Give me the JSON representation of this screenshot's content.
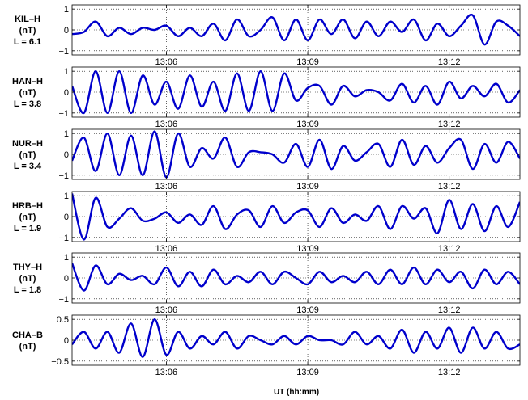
{
  "chart_data": {
    "type": "line",
    "xlabel": "UT (hh:mm)",
    "x_range": [
      "13:04",
      "13:13:30"
    ],
    "x_ticks": [
      "13:06",
      "13:09",
      "13:12"
    ],
    "grid": true,
    "line_color": "#0000cc",
    "panels": [
      {
        "label_lines": [
          "KIL–H",
          "(nT)",
          "L = 6.1"
        ],
        "ylim": [
          -1.2,
          1.2
        ],
        "yticks": [
          -1,
          0,
          1
        ],
        "ytick_labels": [
          "−1",
          "0",
          "1"
        ],
        "x": [
          "13:04:00",
          "13:04:15",
          "13:04:30",
          "13:04:45",
          "13:05:00",
          "13:05:15",
          "13:05:30",
          "13:05:45",
          "13:06:00",
          "13:06:15",
          "13:06:30",
          "13:06:45",
          "13:07:00",
          "13:07:15",
          "13:07:30",
          "13:07:45",
          "13:08:00",
          "13:08:15",
          "13:08:30",
          "13:08:45",
          "13:09:00",
          "13:09:15",
          "13:09:30",
          "13:09:45",
          "13:10:00",
          "13:10:15",
          "13:10:30",
          "13:10:45",
          "13:11:00",
          "13:11:15",
          "13:11:30",
          "13:11:45",
          "13:12:00",
          "13:12:15",
          "13:12:30",
          "13:12:45",
          "13:13:00",
          "13:13:15",
          "13:13:30"
        ],
        "values": [
          -0.2,
          -0.1,
          0.4,
          -0.3,
          0.1,
          -0.2,
          0.1,
          0.0,
          0.2,
          -0.3,
          0.1,
          -0.3,
          0.3,
          -0.5,
          0.5,
          -0.3,
          0.0,
          0.6,
          -0.5,
          0.5,
          -0.5,
          0.5,
          -0.2,
          0.5,
          -0.4,
          0.4,
          -0.3,
          0.4,
          -0.1,
          0.5,
          -0.5,
          0.3,
          -0.3,
          0.2,
          0.7,
          -0.7,
          0.4,
          0.2,
          -0.3
        ]
      },
      {
        "label_lines": [
          "HAN–H",
          "(nT)",
          "L = 3.8"
        ],
        "ylim": [
          -1.2,
          1.2
        ],
        "yticks": [
          -1,
          0,
          1
        ],
        "ytick_labels": [
          "−1",
          "0",
          "1"
        ],
        "x": [
          "13:04:00",
          "13:04:15",
          "13:04:30",
          "13:04:45",
          "13:05:00",
          "13:05:15",
          "13:05:30",
          "13:05:45",
          "13:06:00",
          "13:06:15",
          "13:06:30",
          "13:06:45",
          "13:07:00",
          "13:07:15",
          "13:07:30",
          "13:07:45",
          "13:08:00",
          "13:08:15",
          "13:08:30",
          "13:08:45",
          "13:09:00",
          "13:09:15",
          "13:09:30",
          "13:09:45",
          "13:10:00",
          "13:10:15",
          "13:10:30",
          "13:10:45",
          "13:11:00",
          "13:11:15",
          "13:11:30",
          "13:11:45",
          "13:12:00",
          "13:12:15",
          "13:12:30",
          "13:12:45",
          "13:13:00",
          "13:13:15",
          "13:13:30"
        ],
        "values": [
          0.3,
          -1.0,
          1.0,
          -1.0,
          1.0,
          -1.0,
          0.8,
          -0.6,
          0.5,
          -0.8,
          0.8,
          -0.7,
          0.5,
          -0.9,
          0.9,
          -0.9,
          1.0,
          -0.9,
          0.9,
          -0.4,
          0.2,
          0.3,
          -0.6,
          0.3,
          -0.2,
          0.1,
          0.0,
          -0.4,
          0.4,
          -0.5,
          0.3,
          -0.6,
          0.5,
          -0.3,
          0.3,
          -0.2,
          0.4,
          -0.5,
          0.1
        ]
      },
      {
        "label_lines": [
          "NUR–H",
          "(nT)",
          "L = 3.4"
        ],
        "ylim": [
          -1.2,
          1.2
        ],
        "yticks": [
          -1,
          0,
          1
        ],
        "ytick_labels": [
          "−1",
          "0",
          "1"
        ],
        "x": [
          "13:04:00",
          "13:04:15",
          "13:04:30",
          "13:04:45",
          "13:05:00",
          "13:05:15",
          "13:05:30",
          "13:05:45",
          "13:06:00",
          "13:06:15",
          "13:06:30",
          "13:06:45",
          "13:07:00",
          "13:07:15",
          "13:07:30",
          "13:07:45",
          "13:08:00",
          "13:08:15",
          "13:08:30",
          "13:08:45",
          "13:09:00",
          "13:09:15",
          "13:09:30",
          "13:09:45",
          "13:10:00",
          "13:10:15",
          "13:10:30",
          "13:10:45",
          "13:11:00",
          "13:11:15",
          "13:11:30",
          "13:11:45",
          "13:12:00",
          "13:12:15",
          "13:12:30",
          "13:12:45",
          "13:13:00",
          "13:13:15",
          "13:13:30"
        ],
        "values": [
          -0.3,
          0.8,
          -0.8,
          1.0,
          -1.0,
          0.9,
          -1.0,
          1.1,
          -1.1,
          1.0,
          -0.6,
          0.3,
          -0.2,
          0.8,
          -0.6,
          0.1,
          0.1,
          0.0,
          -0.4,
          0.5,
          -0.6,
          0.7,
          -0.7,
          0.4,
          -0.3,
          0.1,
          0.5,
          -0.6,
          0.7,
          -0.5,
          0.4,
          -0.4,
          0.3,
          0.7,
          -0.7,
          0.5,
          -0.4,
          0.6,
          -0.2
        ]
      },
      {
        "label_lines": [
          "HRB–H",
          "(nT)",
          "L = 1.9"
        ],
        "ylim": [
          -1.2,
          1.2
        ],
        "yticks": [
          -1,
          0,
          1
        ],
        "ytick_labels": [
          "−1",
          "0",
          "1"
        ],
        "x": [
          "13:04:00",
          "13:04:15",
          "13:04:30",
          "13:04:45",
          "13:05:00",
          "13:05:15",
          "13:05:30",
          "13:05:45",
          "13:06:00",
          "13:06:15",
          "13:06:30",
          "13:06:45",
          "13:07:00",
          "13:07:15",
          "13:07:30",
          "13:07:45",
          "13:08:00",
          "13:08:15",
          "13:08:30",
          "13:08:45",
          "13:09:00",
          "13:09:15",
          "13:09:30",
          "13:09:45",
          "13:10:00",
          "13:10:15",
          "13:10:30",
          "13:10:45",
          "13:11:00",
          "13:11:15",
          "13:11:30",
          "13:11:45",
          "13:12:00",
          "13:12:15",
          "13:12:30",
          "13:12:45",
          "13:13:00",
          "13:13:15",
          "13:13:30"
        ],
        "values": [
          1.1,
          -1.1,
          0.9,
          -0.5,
          -0.1,
          0.4,
          -0.2,
          -0.1,
          0.2,
          -0.3,
          0.1,
          -0.4,
          0.5,
          -0.6,
          0.1,
          0.3,
          -0.5,
          0.5,
          -0.3,
          0.2,
          0.3,
          -0.5,
          0.4,
          -0.3,
          0.1,
          -0.2,
          0.5,
          -0.6,
          0.5,
          -0.1,
          0.4,
          -0.8,
          0.8,
          -0.6,
          0.6,
          -0.7,
          0.5,
          -0.5,
          0.7
        ]
      },
      {
        "label_lines": [
          "THY–H",
          "(nT)",
          "L = 1.8"
        ],
        "ylim": [
          -1.2,
          1.2
        ],
        "yticks": [
          -1,
          0,
          1
        ],
        "ytick_labels": [
          "−1",
          "0",
          "1"
        ],
        "x": [
          "13:04:00",
          "13:04:15",
          "13:04:30",
          "13:04:45",
          "13:05:00",
          "13:05:15",
          "13:05:30",
          "13:05:45",
          "13:06:00",
          "13:06:15",
          "13:06:30",
          "13:06:45",
          "13:07:00",
          "13:07:15",
          "13:07:30",
          "13:07:45",
          "13:08:00",
          "13:08:15",
          "13:08:30",
          "13:08:45",
          "13:09:00",
          "13:09:15",
          "13:09:30",
          "13:09:45",
          "13:10:00",
          "13:10:15",
          "13:10:30",
          "13:10:45",
          "13:11:00",
          "13:11:15",
          "13:11:30",
          "13:11:45",
          "13:12:00",
          "13:12:15",
          "13:12:30",
          "13:12:45",
          "13:13:00",
          "13:13:15",
          "13:13:30"
        ],
        "values": [
          0.7,
          -0.6,
          0.6,
          -0.3,
          0.2,
          -0.1,
          0.1,
          -0.3,
          0.5,
          -0.4,
          0.3,
          -0.4,
          0.4,
          -0.3,
          0.1,
          -0.2,
          0.3,
          -0.3,
          0.3,
          0.0,
          -0.3,
          0.3,
          -0.2,
          0.1,
          -0.2,
          0.3,
          -0.3,
          0.4,
          -0.3,
          0.5,
          -0.3,
          0.4,
          -0.2,
          0.3,
          -0.5,
          0.4,
          -0.3,
          0.3,
          -0.3
        ]
      },
      {
        "label_lines": [
          "CHA–B",
          "(nT)"
        ],
        "ylim": [
          -0.6,
          0.6
        ],
        "yticks": [
          -0.5,
          0,
          0.5
        ],
        "ytick_labels": [
          "−0.5",
          "0",
          "0.5"
        ],
        "x": [
          "13:04:00",
          "13:04:15",
          "13:04:30",
          "13:04:45",
          "13:05:00",
          "13:05:15",
          "13:05:30",
          "13:05:45",
          "13:06:00",
          "13:06:15",
          "13:06:30",
          "13:06:45",
          "13:07:00",
          "13:07:15",
          "13:07:30",
          "13:07:45",
          "13:08:00",
          "13:08:15",
          "13:08:30",
          "13:08:45",
          "13:09:00",
          "13:09:15",
          "13:09:30",
          "13:09:45",
          "13:10:00",
          "13:10:15",
          "13:10:30",
          "13:10:45",
          "13:11:00",
          "13:11:15",
          "13:11:30",
          "13:11:45",
          "13:12:00",
          "13:12:15",
          "13:12:30",
          "13:12:45",
          "13:13:00",
          "13:13:15",
          "13:13:30"
        ],
        "values": [
          -0.1,
          0.2,
          -0.2,
          0.2,
          -0.3,
          0.4,
          -0.4,
          0.5,
          -0.35,
          0.2,
          -0.2,
          0.1,
          -0.1,
          0.2,
          -0.2,
          0.1,
          0.0,
          -0.1,
          0.1,
          -0.1,
          0.1,
          0.0,
          0.0,
          -0.1,
          0.2,
          -0.1,
          0.1,
          -0.2,
          0.25,
          -0.3,
          0.2,
          -0.2,
          0.3,
          -0.3,
          0.3,
          -0.2,
          0.2,
          -0.2,
          -0.1
        ]
      }
    ]
  }
}
